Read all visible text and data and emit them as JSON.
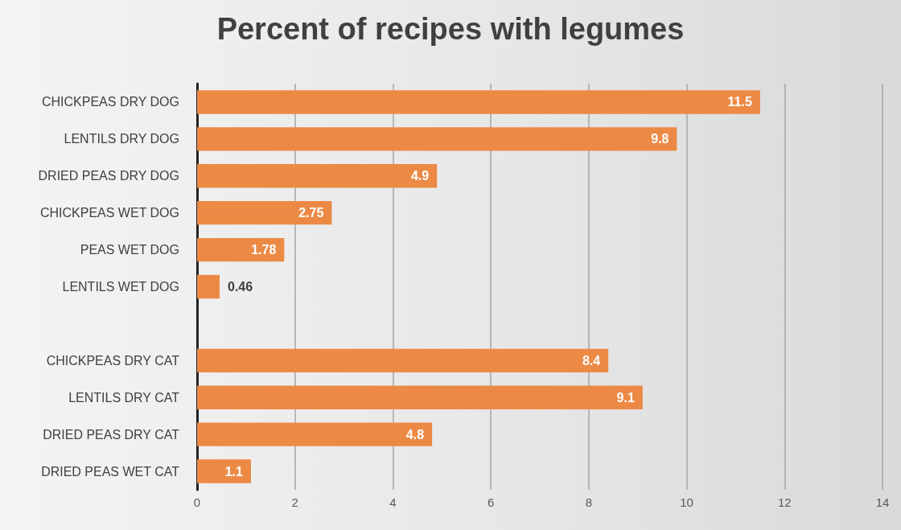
{
  "chart_data": {
    "type": "bar",
    "orientation": "horizontal",
    "title": "Percent of recipes with legumes",
    "categories": [
      "CHICKPEAS DRY DOG",
      "LENTILS DRY DOG",
      "DRIED PEAS DRY DOG",
      "CHICKPEAS WET DOG",
      "PEAS WET DOG",
      "LENTILS WET DOG",
      null,
      "CHICKPEAS DRY CAT",
      "LENTILS DRY CAT",
      "DRIED PEAS DRY CAT",
      "DRIED PEAS WET CAT"
    ],
    "values": [
      11.5,
      9.8,
      4.9,
      2.75,
      1.78,
      0.46,
      null,
      8.4,
      9.1,
      4.8,
      1.1
    ],
    "color": "#ec8a45",
    "xlim": [
      0,
      14
    ],
    "xticks": [
      0,
      2,
      4,
      6,
      8,
      10,
      12,
      14
    ],
    "grid": "x",
    "data_labels": true
  }
}
